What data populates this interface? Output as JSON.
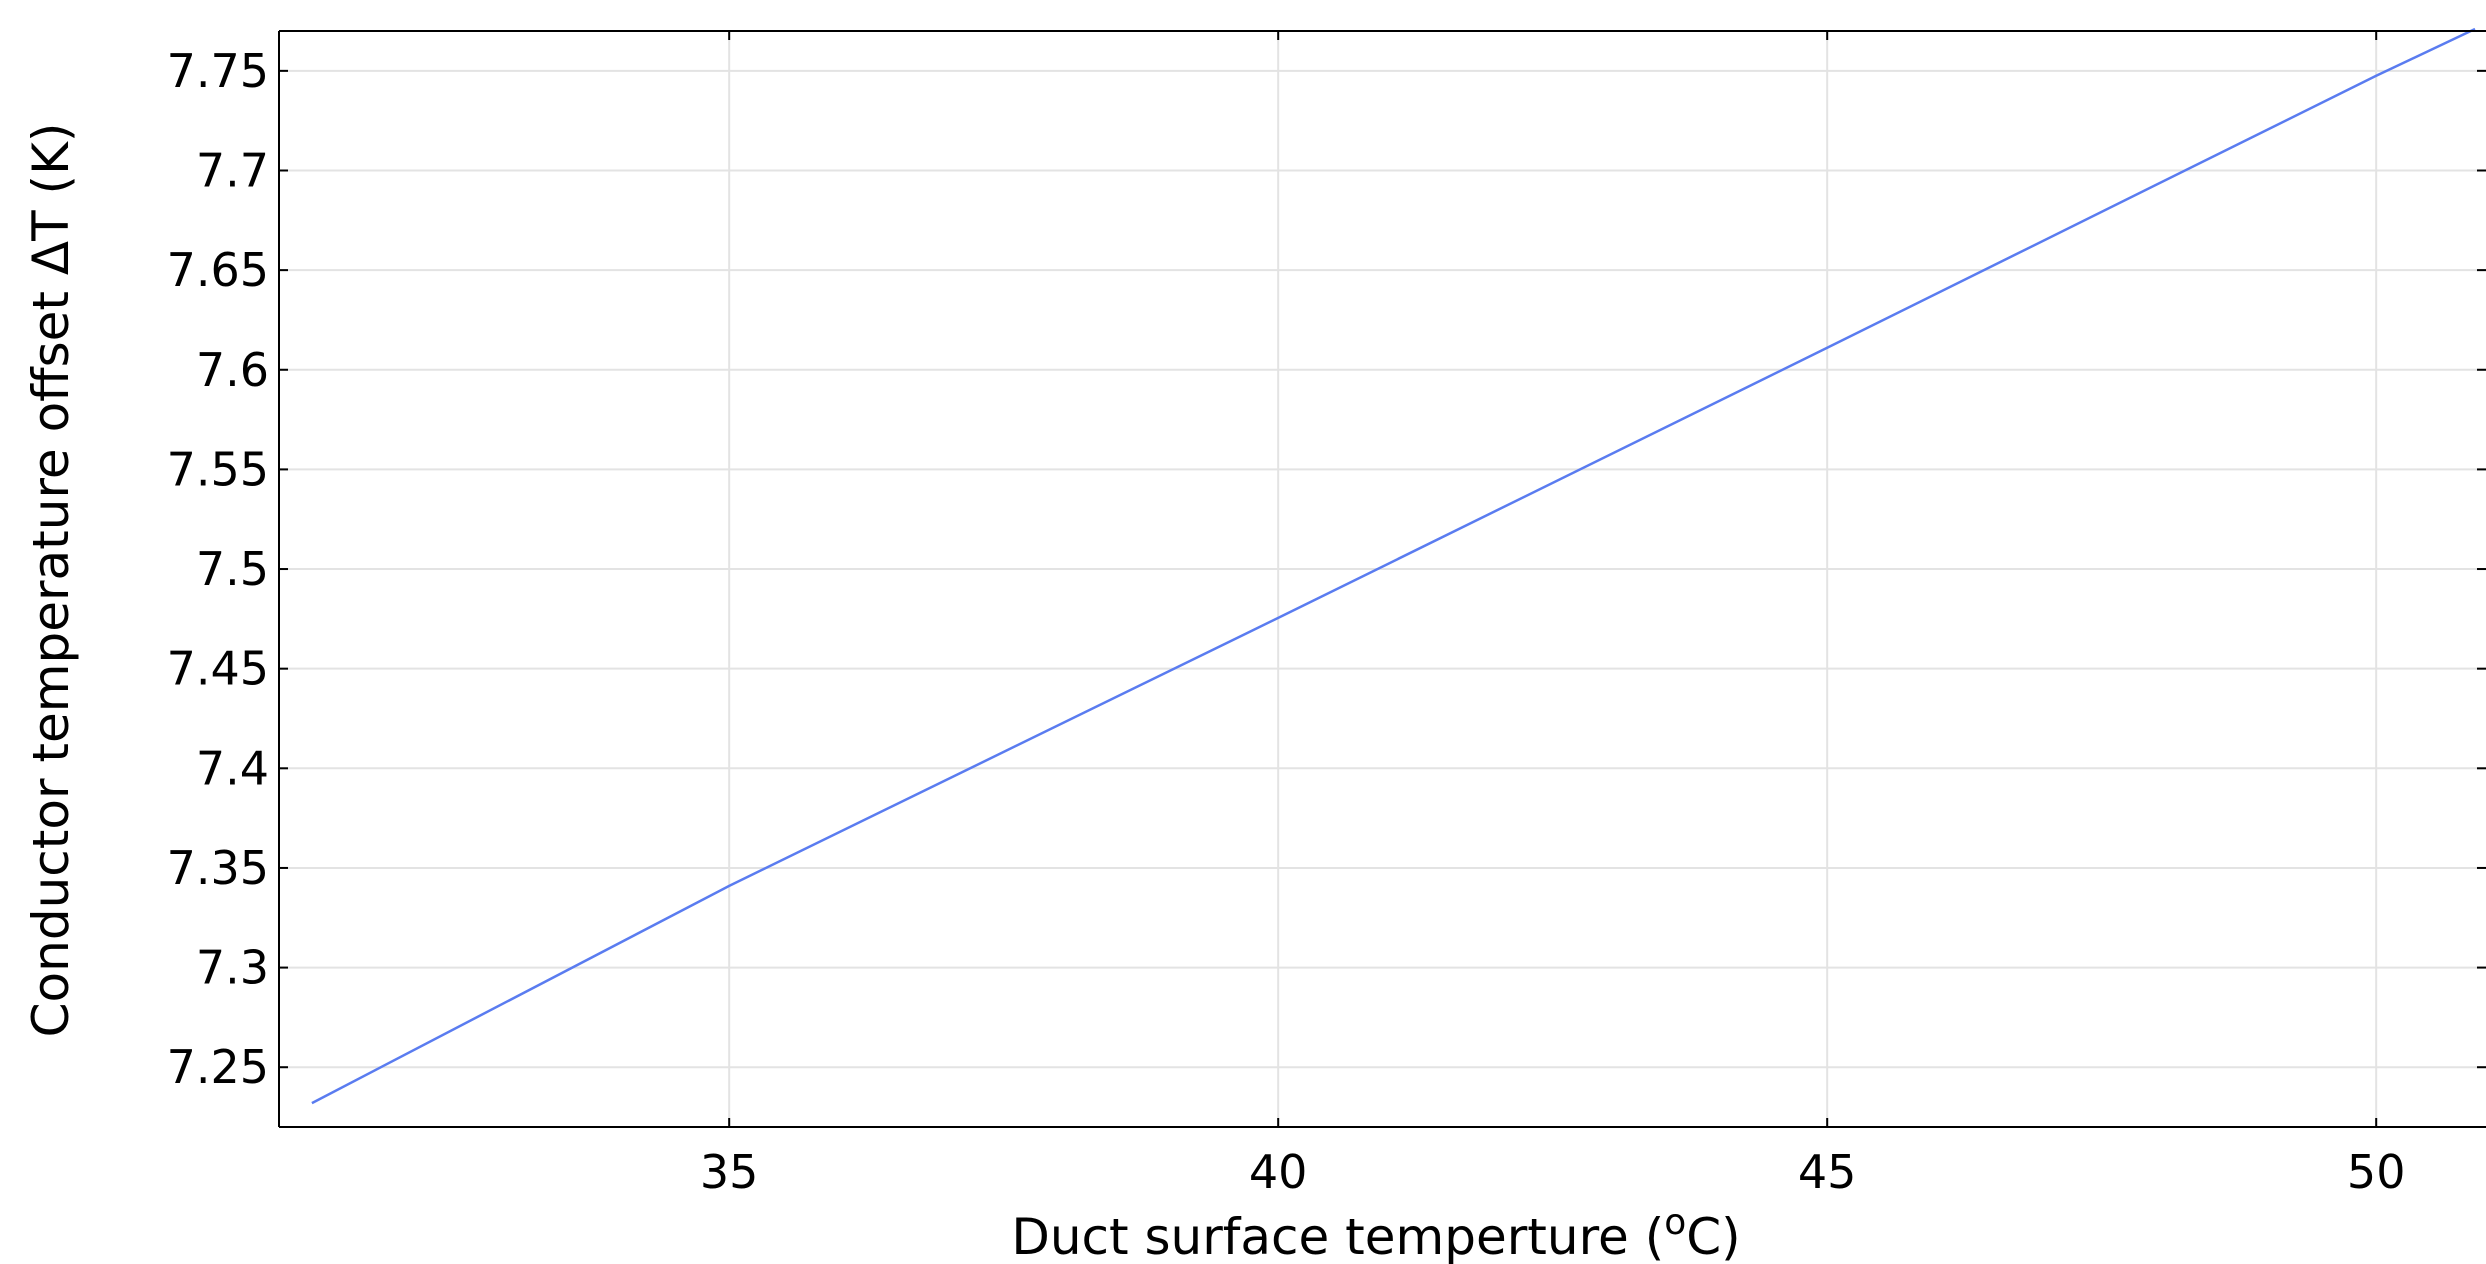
{
  "chart_data": {
    "type": "line",
    "xlabel_main": "Duct surface temperture (",
    "xlabel_sup": "o",
    "xlabel_end": "C)",
    "ylabel": "Conductor temperature offset ΔT (K)",
    "xlim": [
      30.9,
      51.0
    ],
    "ylim": [
      7.22,
      7.77
    ],
    "x_ticks": [
      35,
      40,
      45,
      50
    ],
    "x_tick_labels": [
      "35",
      "40",
      "45",
      "50"
    ],
    "y_ticks": [
      7.25,
      7.3,
      7.35,
      7.4,
      7.45,
      7.5,
      7.55,
      7.6,
      7.65,
      7.7,
      7.75
    ],
    "y_tick_labels": [
      "7.25",
      "7.3",
      "7.35",
      "7.4",
      "7.45",
      "7.5",
      "7.55",
      "7.6",
      "7.65",
      "7.7",
      "7.75"
    ],
    "grid": true,
    "series": [
      {
        "color": "#5a7cf0",
        "x": [
          31.2,
          35,
          40,
          45,
          50,
          50.9
        ],
        "y": [
          7.232,
          7.341,
          7.4755,
          7.611,
          7.7475,
          7.771
        ]
      }
    ]
  }
}
